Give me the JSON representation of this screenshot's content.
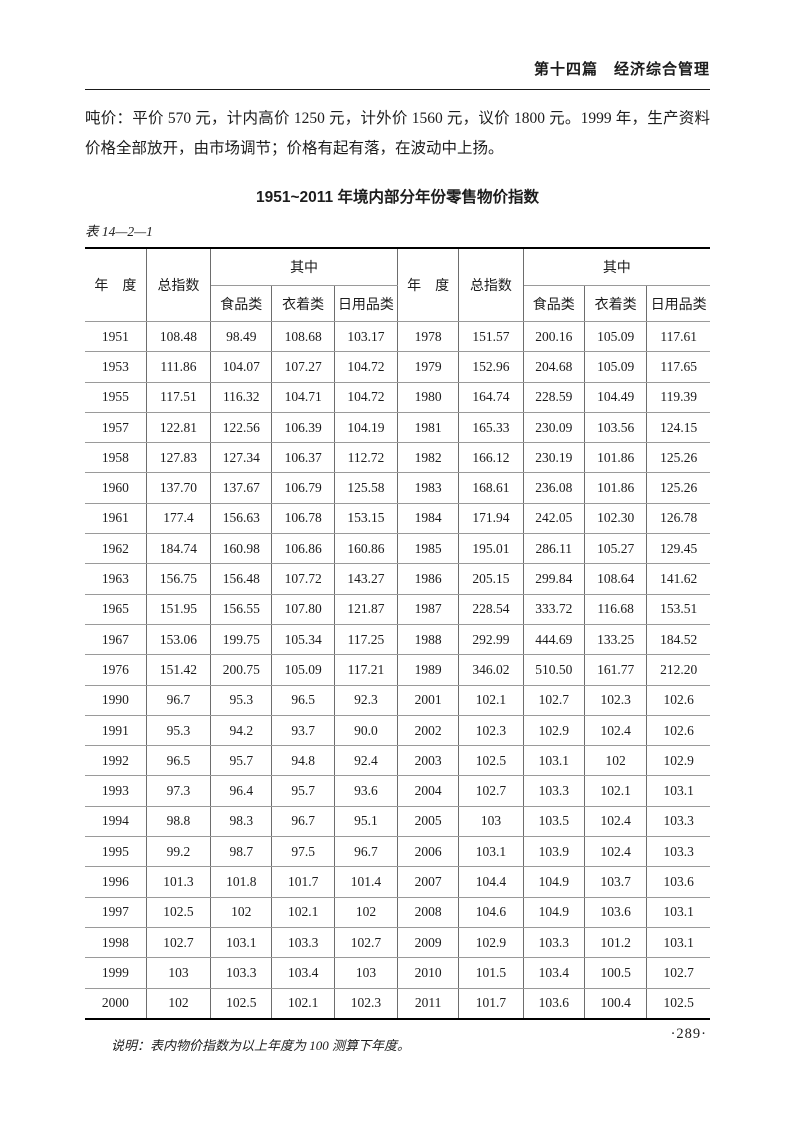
{
  "page": {
    "header": "第十四篇　经济综合管理",
    "paragraph": "吨价：平价 570 元，计内高价 1250 元，计外价 1560 元，议价 1800 元。1999 年，生产资料价格全部放开，由市场调节；价格有起有落，在波动中上扬。",
    "table_title": "1951~2011 年境内部分年份零售物价指数",
    "table_label": "表 14—2—1",
    "note": "说明：表内物价指数为以上年度为 100 测算下年度。",
    "page_number": "·289·"
  },
  "table": {
    "headers": {
      "year": "年　度",
      "total_index": "总指数",
      "among_which": "其中",
      "food": "食品类",
      "clothing": "衣着类",
      "daily_goods": "日用品类"
    },
    "rows": [
      [
        "1951",
        "108.48",
        "98.49",
        "108.68",
        "103.17",
        "1978",
        "151.57",
        "200.16",
        "105.09",
        "117.61"
      ],
      [
        "1953",
        "111.86",
        "104.07",
        "107.27",
        "104.72",
        "1979",
        "152.96",
        "204.68",
        "105.09",
        "117.65"
      ],
      [
        "1955",
        "117.51",
        "116.32",
        "104.71",
        "104.72",
        "1980",
        "164.74",
        "228.59",
        "104.49",
        "119.39"
      ],
      [
        "1957",
        "122.81",
        "122.56",
        "106.39",
        "104.19",
        "1981",
        "165.33",
        "230.09",
        "103.56",
        "124.15"
      ],
      [
        "1958",
        "127.83",
        "127.34",
        "106.37",
        "112.72",
        "1982",
        "166.12",
        "230.19",
        "101.86",
        "125.26"
      ],
      [
        "1960",
        "137.70",
        "137.67",
        "106.79",
        "125.58",
        "1983",
        "168.61",
        "236.08",
        "101.86",
        "125.26"
      ],
      [
        "1961",
        "177.4",
        "156.63",
        "106.78",
        "153.15",
        "1984",
        "171.94",
        "242.05",
        "102.30",
        "126.78"
      ],
      [
        "1962",
        "184.74",
        "160.98",
        "106.86",
        "160.86",
        "1985",
        "195.01",
        "286.11",
        "105.27",
        "129.45"
      ],
      [
        "1963",
        "156.75",
        "156.48",
        "107.72",
        "143.27",
        "1986",
        "205.15",
        "299.84",
        "108.64",
        "141.62"
      ],
      [
        "1965",
        "151.95",
        "156.55",
        "107.80",
        "121.87",
        "1987",
        "228.54",
        "333.72",
        "116.68",
        "153.51"
      ],
      [
        "1967",
        "153.06",
        "199.75",
        "105.34",
        "117.25",
        "1988",
        "292.99",
        "444.69",
        "133.25",
        "184.52"
      ],
      [
        "1976",
        "151.42",
        "200.75",
        "105.09",
        "117.21",
        "1989",
        "346.02",
        "510.50",
        "161.77",
        "212.20"
      ],
      [
        "1990",
        "96.7",
        "95.3",
        "96.5",
        "92.3",
        "2001",
        "102.1",
        "102.7",
        "102.3",
        "102.6"
      ],
      [
        "1991",
        "95.3",
        "94.2",
        "93.7",
        "90.0",
        "2002",
        "102.3",
        "102.9",
        "102.4",
        "102.6"
      ],
      [
        "1992",
        "96.5",
        "95.7",
        "94.8",
        "92.4",
        "2003",
        "102.5",
        "103.1",
        "102",
        "102.9"
      ],
      [
        "1993",
        "97.3",
        "96.4",
        "95.7",
        "93.6",
        "2004",
        "102.7",
        "103.3",
        "102.1",
        "103.1"
      ],
      [
        "1994",
        "98.8",
        "98.3",
        "96.7",
        "95.1",
        "2005",
        "103",
        "103.5",
        "102.4",
        "103.3"
      ],
      [
        "1995",
        "99.2",
        "98.7",
        "97.5",
        "96.7",
        "2006",
        "103.1",
        "103.9",
        "102.4",
        "103.3"
      ],
      [
        "1996",
        "101.3",
        "101.8",
        "101.7",
        "101.4",
        "2007",
        "104.4",
        "104.9",
        "103.7",
        "103.6"
      ],
      [
        "1997",
        "102.5",
        "102",
        "102.1",
        "102",
        "2008",
        "104.6",
        "104.9",
        "103.6",
        "103.1"
      ],
      [
        "1998",
        "102.7",
        "103.1",
        "103.3",
        "102.7",
        "2009",
        "102.9",
        "103.3",
        "101.2",
        "103.1"
      ],
      [
        "1999",
        "103",
        "103.3",
        "103.4",
        "103",
        "2010",
        "101.5",
        "103.4",
        "100.5",
        "102.7"
      ],
      [
        "2000",
        "102",
        "102.5",
        "102.1",
        "102.3",
        "2011",
        "101.7",
        "103.6",
        "100.4",
        "102.5"
      ]
    ]
  }
}
